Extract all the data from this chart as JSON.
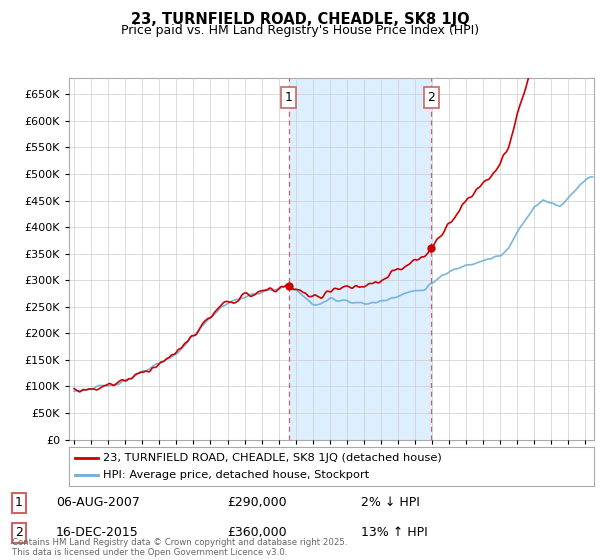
{
  "title": "23, TURNFIELD ROAD, CHEADLE, SK8 1JQ",
  "subtitle": "Price paid vs. HM Land Registry's House Price Index (HPI)",
  "legend_line1": "23, TURNFIELD ROAD, CHEADLE, SK8 1JQ (detached house)",
  "legend_line2": "HPI: Average price, detached house, Stockport",
  "annotation1_date": "06-AUG-2007",
  "annotation1_price": "£290,000",
  "annotation1_hpi": "2% ↓ HPI",
  "annotation2_date": "16-DEC-2015",
  "annotation2_price": "£360,000",
  "annotation2_hpi": "13% ↑ HPI",
  "footer": "Contains HM Land Registry data © Crown copyright and database right 2025.\nThis data is licensed under the Open Government Licence v3.0.",
  "sale1_year": 2007.583,
  "sale1_value": 290000,
  "sale2_year": 2015.958,
  "sale2_value": 360000,
  "hpi_color": "#6baed6",
  "price_color": "#cc0000",
  "vline_color": "#cc6666",
  "shade_color": "#ddeeff",
  "grid_color": "#cccccc",
  "background_color": "#ffffff",
  "ylim_min": 0,
  "ylim_max": 680000,
  "xlim_min": 1994.7,
  "xlim_max": 2025.5
}
